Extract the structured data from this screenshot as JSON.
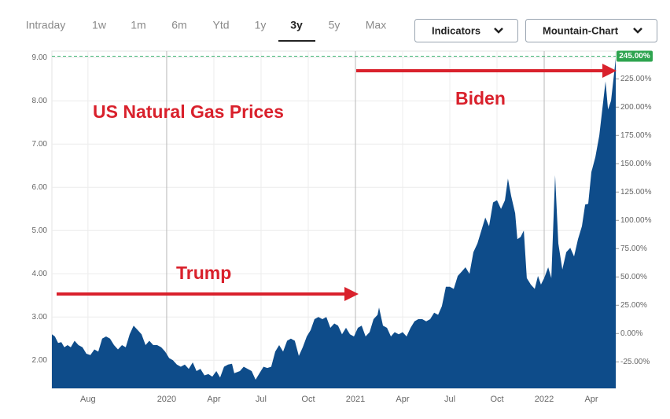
{
  "tabs": [
    "Intraday",
    "1w",
    "1m",
    "6m",
    "Ytd",
    "1y",
    "3y",
    "5y",
    "Max"
  ],
  "buttons": [
    "Indicators",
    "Mountain-Chart"
  ],
  "chart_data": {
    "type": "area",
    "title": "US Natural Gas Prices",
    "annotations": [
      "Trump",
      "Biden"
    ],
    "xlim": [
      2019.392,
      2022.379
    ],
    "xticks": [
      {
        "value": 2019.583,
        "label": "Aug"
      },
      2020,
      {
        "value": 2020.25,
        "label": "Apr"
      },
      {
        "value": 2020.5,
        "label": "Jul"
      },
      {
        "value": 2020.75,
        "label": "Oct"
      },
      2021,
      {
        "value": 2021.25,
        "label": "Apr"
      },
      {
        "value": 2021.5,
        "label": "Jul"
      },
      {
        "value": 2021.75,
        "label": "Oct"
      },
      2022,
      {
        "value": 2022.25,
        "label": "Apr"
      }
    ],
    "ylim": [
      1.35,
      9.15
    ],
    "yticks": [
      {
        "value": 2,
        "label": "2.00"
      },
      {
        "value": 3,
        "label": "3.00"
      },
      {
        "value": 4,
        "label": "4.00"
      },
      {
        "value": 5,
        "label": "5.00"
      },
      {
        "value": 6,
        "label": "6.00"
      },
      {
        "value": 7,
        "label": "7.00"
      },
      {
        "value": 8,
        "label": "8.00"
      },
      {
        "value": 9,
        "label": "9.00"
      }
    ],
    "y2lim": [
      -48.4,
      249.5
    ],
    "y2ticks": [
      {
        "value": -25,
        "label": "-25.00%"
      },
      {
        "value": 0,
        "label": "0.00%"
      },
      {
        "value": 25,
        "label": "25.00%"
      },
      {
        "value": 50,
        "label": "50.00%"
      },
      {
        "value": 75,
        "label": "75.00%"
      },
      {
        "value": 100,
        "label": "100.00%"
      },
      {
        "value": 125,
        "label": "125.00%"
      },
      {
        "value": 150,
        "label": "150.00%"
      },
      {
        "value": 175,
        "label": "175.00%"
      },
      {
        "value": 200,
        "label": "200.00%"
      },
      {
        "value": 225,
        "label": "225.00%"
      }
    ],
    "last_value": {
      "value": 245,
      "label": "245.00%"
    },
    "grid": true,
    "series": [
      {
        "color": "#0e4c8a",
        "x": [
          2019.392,
          2019.408,
          2019.425,
          2019.442,
          2019.458,
          2019.475,
          2019.492,
          2019.512,
          2019.533,
          2019.554,
          2019.575,
          2019.596,
          2019.617,
          2019.638,
          2019.658,
          2019.679,
          2019.7,
          2019.721,
          2019.742,
          2019.763,
          2019.783,
          2019.804,
          2019.825,
          2019.846,
          2019.867,
          2019.888,
          2019.908,
          2019.929,
          2019.95,
          2019.971,
          2019.992,
          2020.013,
          2020.033,
          2020.054,
          2020.075,
          2020.096,
          2020.117,
          2020.138,
          2020.158,
          2020.179,
          2020.2,
          2020.221,
          2020.242,
          2020.263,
          2020.283,
          2020.304,
          2020.325,
          2020.346,
          2020.358,
          2020.388,
          2020.408,
          2020.429,
          2020.45,
          2020.471,
          2020.492,
          2020.513,
          2020.533,
          2020.554,
          2020.575,
          2020.596,
          2020.617,
          2020.638,
          2020.658,
          2020.679,
          2020.7,
          2020.721,
          2020.742,
          2020.763,
          2020.783,
          2020.804,
          2020.825,
          2020.846,
          2020.867,
          2020.888,
          2020.908,
          2020.929,
          2020.95,
          2020.971,
          2020.992,
          2021.013,
          2021.033,
          2021.054,
          2021.075,
          2021.096,
          2021.117,
          2021.125,
          2021.146,
          2021.167,
          2021.188,
          2021.208,
          2021.229,
          2021.25,
          2021.271,
          2021.292,
          2021.313,
          2021.333,
          2021.354,
          2021.375,
          2021.396,
          2021.417,
          2021.438,
          2021.458,
          2021.479,
          2021.5,
          2021.521,
          2021.542,
          2021.563,
          2021.583,
          2021.604,
          2021.625,
          2021.646,
          2021.667,
          2021.688,
          2021.708,
          2021.729,
          2021.75,
          2021.771,
          2021.792,
          2021.808,
          2021.825,
          2021.846,
          2021.858,
          2021.875,
          2021.892,
          2021.908,
          2021.929,
          2021.95,
          2021.967,
          2021.983,
          2022.0,
          2022.021,
          2022.038,
          2022.058,
          2022.075,
          2022.096,
          2022.117,
          2022.138,
          2022.158,
          2022.179,
          2022.2,
          2022.217,
          2022.233,
          2022.25,
          2022.271,
          2022.292,
          2022.325,
          2022.338,
          2022.354,
          2022.367,
          2022.379
        ],
        "values": [
          2.6,
          2.55,
          2.4,
          2.42,
          2.3,
          2.35,
          2.3,
          2.45,
          2.35,
          2.3,
          2.15,
          2.12,
          2.25,
          2.2,
          2.5,
          2.55,
          2.5,
          2.35,
          2.25,
          2.35,
          2.3,
          2.6,
          2.8,
          2.7,
          2.6,
          2.35,
          2.45,
          2.35,
          2.35,
          2.3,
          2.2,
          2.05,
          2.0,
          1.9,
          1.85,
          1.9,
          1.8,
          1.95,
          1.75,
          1.8,
          1.65,
          1.68,
          1.62,
          1.75,
          1.6,
          1.85,
          1.9,
          1.92,
          1.7,
          1.75,
          1.85,
          1.8,
          1.75,
          1.55,
          1.7,
          1.85,
          1.82,
          1.85,
          2.2,
          2.35,
          2.2,
          2.45,
          2.5,
          2.45,
          2.1,
          2.3,
          2.55,
          2.7,
          2.95,
          3.0,
          2.95,
          3.0,
          2.75,
          2.85,
          2.8,
          2.6,
          2.75,
          2.6,
          2.55,
          2.75,
          2.8,
          2.55,
          2.65,
          2.95,
          3.05,
          3.22,
          2.8,
          2.75,
          2.55,
          2.65,
          2.6,
          2.65,
          2.55,
          2.75,
          2.9,
          2.95,
          2.95,
          2.9,
          2.95,
          3.1,
          3.05,
          3.25,
          3.7,
          3.7,
          3.65,
          3.95,
          4.05,
          4.15,
          4.0,
          4.5,
          4.7,
          5.0,
          5.3,
          5.1,
          5.65,
          5.7,
          5.5,
          5.7,
          6.2,
          5.8,
          5.4,
          4.8,
          4.85,
          5.0,
          3.9,
          3.75,
          3.65,
          3.95,
          3.75,
          3.9,
          4.15,
          3.9,
          6.28,
          4.7,
          4.1,
          4.5,
          4.6,
          4.4,
          4.8,
          5.1,
          5.6,
          5.62,
          6.35,
          6.7,
          7.2,
          8.45,
          7.8,
          8.0,
          8.5,
          8.98
        ]
      }
    ]
  }
}
